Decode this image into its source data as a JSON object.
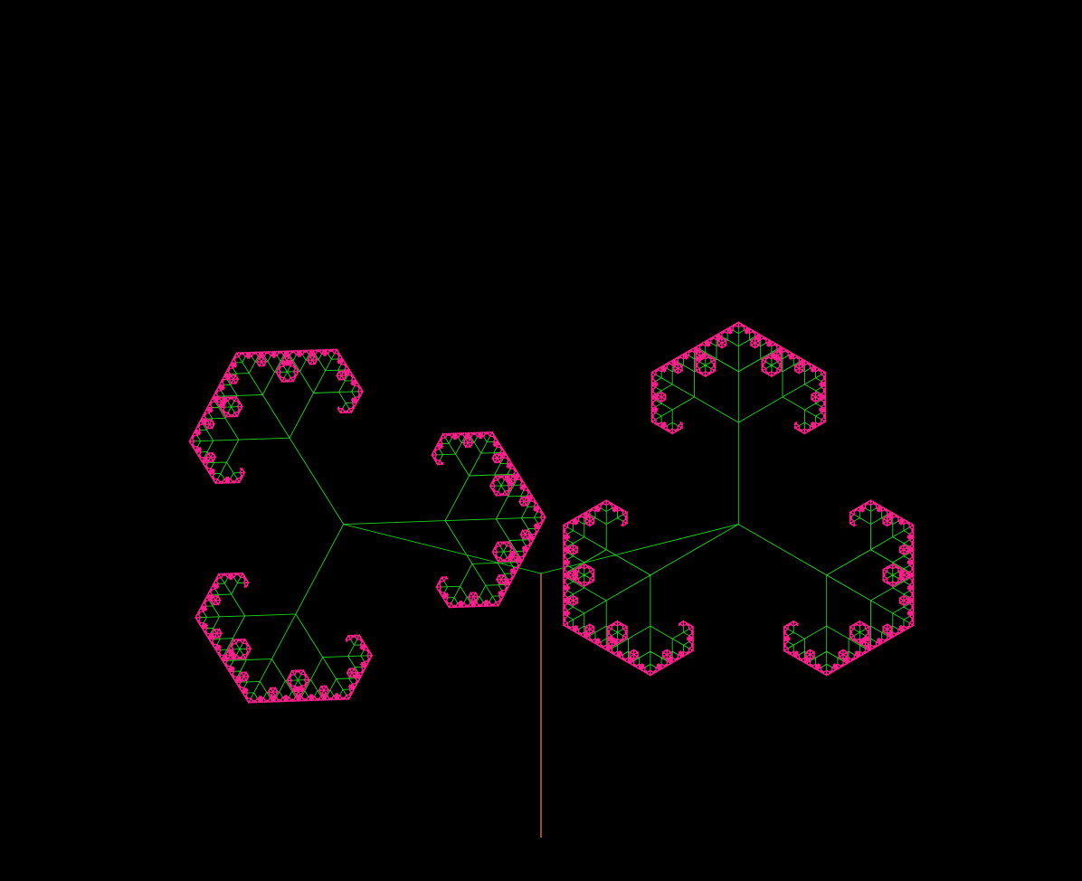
{
  "scene": {
    "kind": "fractal-tree",
    "background_color": "#000000",
    "trunk_color": "#ff8c1a",
    "branch_color": "#19d619",
    "leaf_color": "#ff1f8e",
    "branching": 3,
    "depth": 9,
    "child_length_ratio": 0.5,
    "symmetry": "mirrored-left-right"
  }
}
